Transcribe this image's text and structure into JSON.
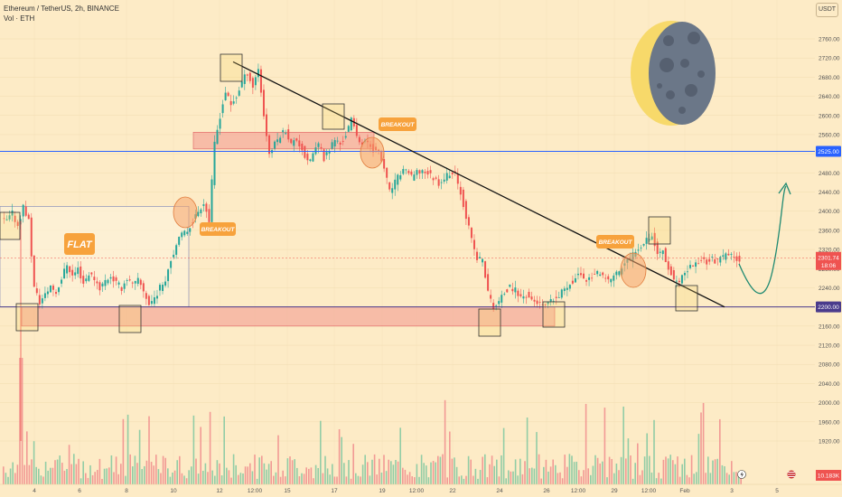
{
  "header": {
    "symbol_line": "Ethereum / TetherUS, 2h, BINANCE",
    "vol_line": "Vol · ETH",
    "currency_button": "USDT"
  },
  "annotations": {
    "flat_label": "FLAT",
    "breakout_labels": [
      "BREAKOUT",
      "BREAKOUT",
      "BREAKOUT"
    ]
  },
  "price_tags": {
    "current_price": "2301.74",
    "countdown": "18:06",
    "level_2525": "2525.00",
    "level_2200": "2200.00",
    "volume": "10.183K"
  },
  "chart_data": {
    "type": "candlestick",
    "y_axis": {
      "range": [
        1880,
        2800
      ],
      "ticks": [
        "2760.00",
        "2720.00",
        "2680.00",
        "2640.00",
        "2600.00",
        "2560.00",
        "2520.00",
        "2480.00",
        "2440.00",
        "2400.00",
        "2360.00",
        "2320.00",
        "2280.00",
        "2240.00",
        "2200.00",
        "2160.00",
        "2120.00",
        "2080.00",
        "2040.00",
        "2000.00",
        "1960.00",
        "1920.00"
      ]
    },
    "x_axis": {
      "labels": [
        "4",
        "6",
        "8",
        "10",
        "12",
        "12:00",
        "15",
        "17",
        "19",
        "12:00",
        "22",
        "24",
        "26",
        "12:00",
        "29",
        "12:00",
        "Feb",
        "3",
        "5"
      ]
    },
    "horizontal_levels": [
      2525,
      2200
    ],
    "resistance_zone": [
      2530,
      2565
    ],
    "support_zone": [
      2160,
      2200
    ],
    "flat_range": [
      2200,
      2410
    ],
    "trendline": [
      [
        2712,
        "12"
      ],
      [
        2200,
        "3"
      ]
    ],
    "price_path": [
      2380,
      2395,
      2370,
      2410,
      2380,
      2240,
      2210,
      2225,
      2245,
      2230,
      2260,
      2290,
      2265,
      2280,
      2250,
      2270,
      2260,
      2240,
      2255,
      2265,
      2250,
      2240,
      2260,
      2245,
      2255,
      2235,
      2205,
      2220,
      2240,
      2260,
      2300,
      2330,
      2350,
      2360,
      2380,
      2400,
      2420,
      2380,
      2540,
      2600,
      2650,
      2620,
      2640,
      2670,
      2690,
      2660,
      2700,
      2600,
      2520,
      2540,
      2560,
      2570,
      2540,
      2550,
      2530,
      2500,
      2520,
      2540,
      2510,
      2530,
      2550,
      2540,
      2560,
      2590,
      2560,
      2540,
      2545,
      2530,
      2520,
      2490,
      2440,
      2460,
      2480,
      2490,
      2470,
      2480,
      2485,
      2480,
      2470,
      2460,
      2470,
      2480,
      2475,
      2440,
      2390,
      2340,
      2300,
      2300,
      2230,
      2200,
      2210,
      2230,
      2240,
      2235,
      2220,
      2225,
      2215,
      2210,
      2200,
      2205,
      2215,
      2220,
      2240,
      2250,
      2260,
      2270,
      2255,
      2265,
      2270,
      2260,
      2255,
      2265,
      2275,
      2290,
      2300,
      2320,
      2330,
      2345,
      2350,
      2310,
      2320,
      2280,
      2260,
      2250,
      2270,
      2285,
      2290,
      2300,
      2295,
      2300,
      2295,
      2305,
      2310,
      2302,
      2301.74
    ],
    "volume_scale_label": "10.183K"
  }
}
